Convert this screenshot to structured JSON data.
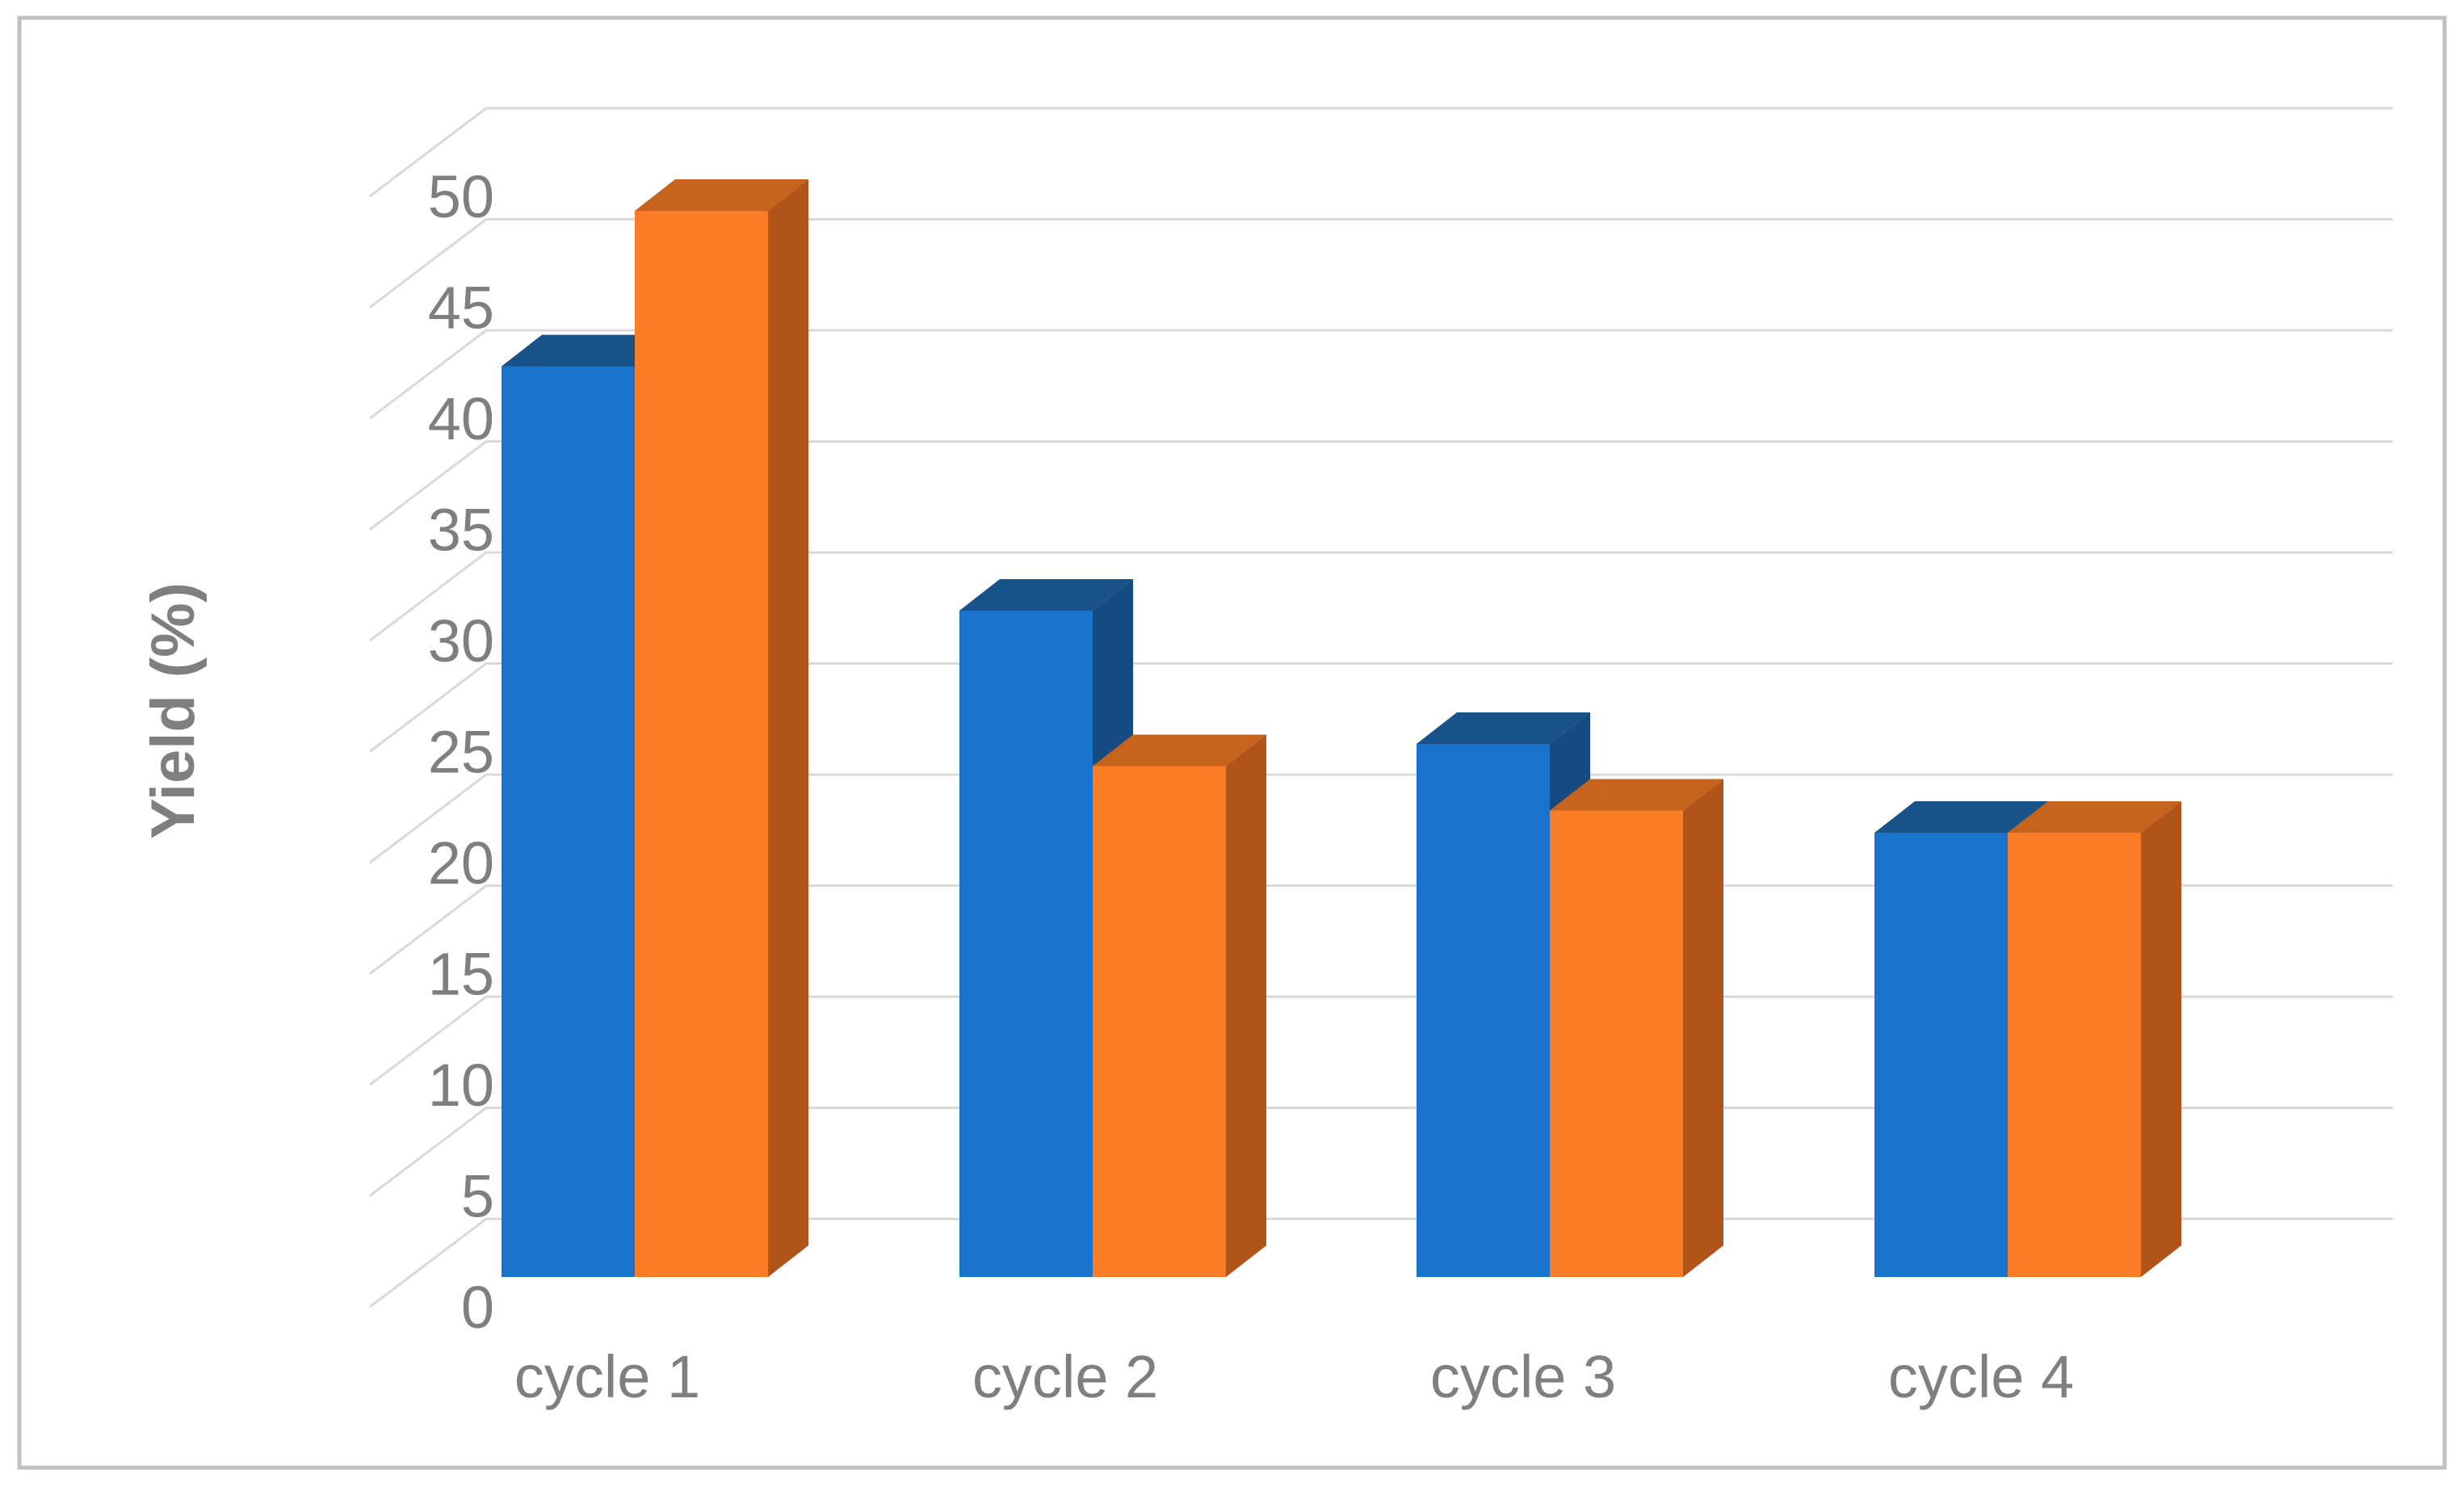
{
  "chart_data": {
    "type": "bar",
    "style": "3d-clustered-column",
    "title": "",
    "xlabel": "",
    "ylabel": "Yield (%)",
    "categories": [
      "cycle 1",
      "cycle 2",
      "cycle 3",
      "cycle 4"
    ],
    "series": [
      {
        "name": "blue",
        "color": "#1A73CA",
        "color_top": "#175289",
        "color_side": "#154B80",
        "values": [
          41,
          30,
          24,
          20
        ]
      },
      {
        "name": "orange",
        "color": "#FB7C27",
        "color_top": "#C6641E",
        "color_side": "#B0541A",
        "values": [
          48,
          23,
          21,
          20
        ]
      }
    ],
    "ylim": [
      0,
      50
    ],
    "yticks": [
      0,
      5,
      10,
      15,
      20,
      25,
      30,
      35,
      40,
      45,
      50
    ],
    "grid": true,
    "legend": false,
    "grid_color": "#D9D9D9",
    "text_color": "#7F7F7F",
    "border_color": "#C1C1C1",
    "background": "#FFFFFF"
  }
}
